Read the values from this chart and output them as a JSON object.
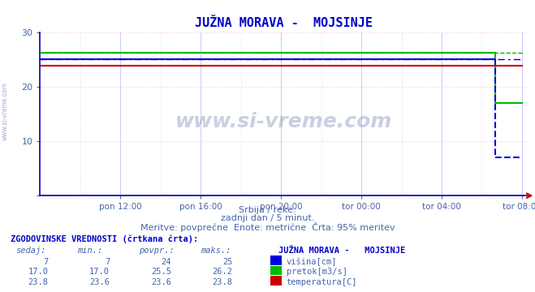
{
  "title": "JUŽNA MORAVA -  MOJSINJE",
  "subtitle1": "Srbija / reke.",
  "subtitle2": "zadnji dan / 5 minut.",
  "subtitle3": "Meritve: povprečne  Enote: metrične  Črta: 95% meritev",
  "watermark": "www.si-vreme.com",
  "background_color": "#ffffff",
  "grid_color_h": "#ffcccc",
  "grid_color_v": "#ccccff",
  "title_color": "#0000cc",
  "text_color": "#4466aa",
  "x_end": 288,
  "x_current": 272,
  "ylim_min": 0,
  "ylim_max": 30,
  "yticks": [
    0,
    10,
    20,
    30
  ],
  "x_tick_labels": [
    "pon 12:00",
    "pon 16:00",
    "pon 20:00",
    "tor 00:00",
    "tor 04:00",
    "tor 08:00"
  ],
  "x_tick_positions": [
    48,
    96,
    144,
    192,
    240,
    288
  ],
  "x_minor_positions": [
    24,
    72,
    120,
    168,
    216,
    264
  ],
  "visina_sedaj": 7,
  "visina_min": 7,
  "visina_povpr": 24,
  "visina_maks": 25,
  "pretok_sedaj": 17.0,
  "pretok_min": 17.0,
  "pretok_povpr": 25.5,
  "pretok_maks": 26.2,
  "temp_sedaj": 23.8,
  "temp_min": 23.6,
  "temp_povpr": 23.6,
  "temp_maks": 23.8,
  "color_visina": "#0000dd",
  "color_pretok": "#00bb00",
  "color_temp": "#cc0000",
  "table_header_color": "#0000cc",
  "table_text_color": "#4466aa",
  "legend_label1": "višina[cm]",
  "legend_label2": "pretok[m3/s]",
  "legend_label3": "temperatura[C]",
  "station_label": "JUŽNA MORAVA -   MOJSINJE",
  "hist_label": "ZGODOVINSKE VREDNOSTI (črtkana črta):",
  "col_headers": [
    "sedaj:",
    "min.:",
    "povpr.:",
    "maks.:"
  ]
}
